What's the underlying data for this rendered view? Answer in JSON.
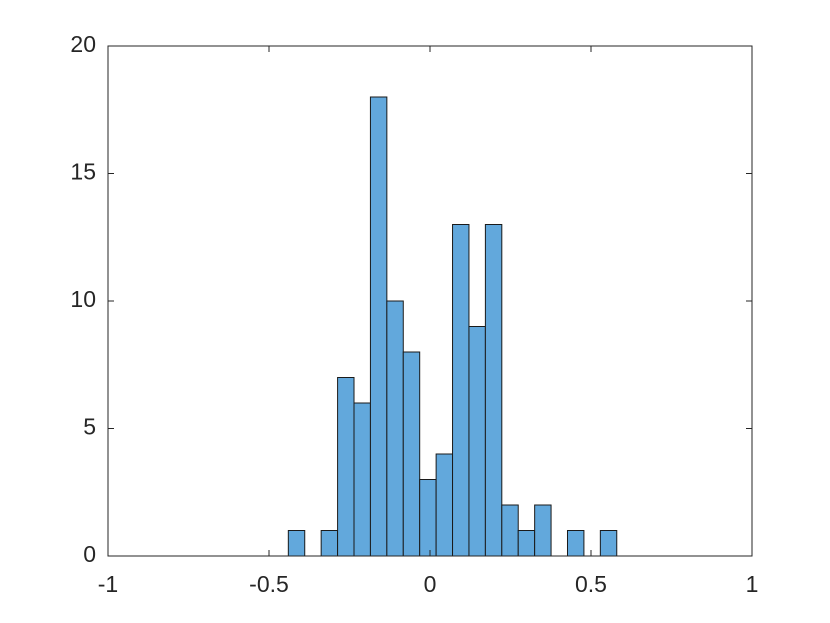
{
  "chart_data": {
    "type": "histogram",
    "bins": [
      -0.44,
      -0.389,
      -0.338,
      -0.287,
      -0.236,
      -0.185,
      -0.134,
      -0.083,
      -0.032,
      0.019,
      0.07,
      0.121,
      0.172,
      0.223,
      0.274,
      0.325,
      0.376,
      0.427,
      0.478,
      0.529,
      0.58
    ],
    "values": [
      1,
      0,
      1,
      7,
      6,
      18,
      10,
      8,
      3,
      4,
      13,
      9,
      13,
      2,
      1,
      2,
      0,
      1,
      0,
      1
    ],
    "color": "#62a8dc",
    "xlim": [
      -1,
      1
    ],
    "xticks": [
      -1,
      -0.5,
      0,
      0.5,
      1
    ],
    "ylim": [
      0,
      20
    ],
    "yticks": [
      0,
      5,
      10,
      15,
      20
    ]
  }
}
